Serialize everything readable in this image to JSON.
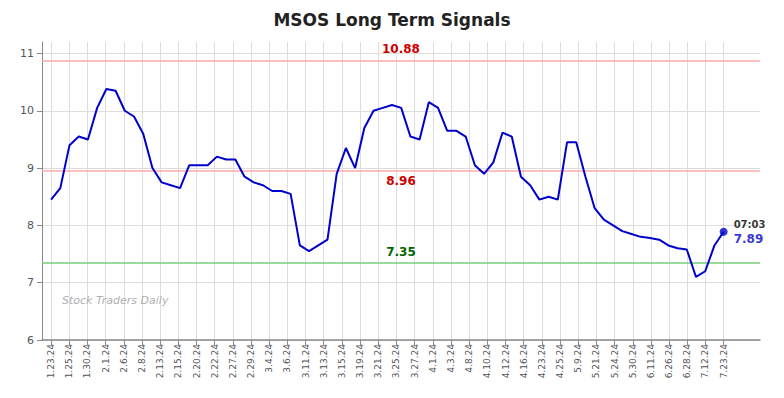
{
  "chart_data": {
    "type": "line",
    "title": "MSOS Long Term Signals",
    "x": [
      0,
      0.5068,
      1.0137,
      1.5205,
      2.0274,
      2.5342,
      3.0411,
      3.5479,
      4.0548,
      4.5616,
      5.0685,
      5.5753,
      6.0822,
      6.589,
      7.0959,
      7.6027,
      8.1096,
      8.6164,
      9.1233,
      9.6301,
      10.137,
      10.6438,
      11.1507,
      11.6575,
      12.1644,
      12.6712,
      13.1781,
      13.6849,
      14.1918,
      14.6986,
      15.2055,
      15.7123,
      16.2192,
      16.726,
      17.2329,
      17.7397,
      18.2466,
      18.7534,
      19.2603,
      19.7671,
      20.274,
      20.7808,
      21.2877,
      21.7945,
      22.3014,
      22.8082,
      23.3151,
      23.8219,
      24.3288,
      24.8356,
      25.3425,
      25.8493,
      26.3562,
      26.863,
      27.3699,
      27.8767,
      28.3836,
      28.8904,
      29.3973,
      29.9041,
      30.411,
      30.9178,
      31.4247,
      31.9315,
      32.4384,
      32.9452,
      33.4521,
      33.9589,
      34.4658,
      34.9726,
      35.4795,
      35.9863,
      36.4932,
      37
    ],
    "values": [
      8.45,
      8.65,
      9.4,
      9.55,
      9.5,
      10.05,
      10.38,
      10.35,
      10.0,
      9.9,
      9.6,
      9.0,
      8.75,
      8.7,
      8.65,
      9.05,
      9.05,
      9.05,
      9.2,
      9.15,
      9.15,
      8.85,
      8.75,
      8.7,
      8.6,
      8.6,
      8.55,
      7.65,
      7.55,
      7.65,
      7.75,
      8.9,
      9.35,
      9.0,
      9.7,
      10.0,
      10.05,
      10.1,
      10.05,
      9.55,
      9.5,
      10.15,
      10.05,
      9.65,
      9.65,
      9.55,
      9.05,
      8.9,
      9.1,
      9.62,
      9.55,
      8.85,
      8.7,
      8.45,
      8.5,
      8.45,
      9.45,
      9.45,
      8.85,
      8.3,
      8.1,
      8.0,
      7.9,
      7.85,
      7.8,
      7.78,
      7.75,
      7.65,
      7.6,
      7.58,
      7.1,
      7.2,
      7.65,
      7.89
    ],
    "color": "#0000cc",
    "xlim": [
      -0.5,
      39
    ],
    "xticks": [
      {
        "value": 0,
        "label": "1.23.24"
      },
      {
        "value": 1,
        "label": "1.25.24"
      },
      {
        "value": 2,
        "label": "1.30.24"
      },
      {
        "value": 3,
        "label": "2.1.24"
      },
      {
        "value": 4,
        "label": "2.6.24"
      },
      {
        "value": 5,
        "label": "2.8.24"
      },
      {
        "value": 6,
        "label": "2.13.24"
      },
      {
        "value": 7,
        "label": "2.15.24"
      },
      {
        "value": 8,
        "label": "2.20.24"
      },
      {
        "value": 9,
        "label": "2.22.24"
      },
      {
        "value": 10,
        "label": "2.27.24"
      },
      {
        "value": 11,
        "label": "2.29.24"
      },
      {
        "value": 12,
        "label": "3.4.24"
      },
      {
        "value": 13,
        "label": "3.6.24"
      },
      {
        "value": 14,
        "label": "3.11.24"
      },
      {
        "value": 15,
        "label": "3.13.24"
      },
      {
        "value": 16,
        "label": "3.15.24"
      },
      {
        "value": 17,
        "label": "3.19.24"
      },
      {
        "value": 18,
        "label": "3.21.24"
      },
      {
        "value": 19,
        "label": "3.25.24"
      },
      {
        "value": 20,
        "label": "3.27.24"
      },
      {
        "value": 21,
        "label": "4.1.24"
      },
      {
        "value": 22,
        "label": "4.3.24"
      },
      {
        "value": 23,
        "label": "4.8.24"
      },
      {
        "value": 24,
        "label": "4.10.24"
      },
      {
        "value": 25,
        "label": "4.12.24"
      },
      {
        "value": 26,
        "label": "4.16.24"
      },
      {
        "value": 27,
        "label": "4.23.24"
      },
      {
        "value": 28,
        "label": "4.25.24"
      },
      {
        "value": 29,
        "label": "5.9.24"
      },
      {
        "value": 30,
        "label": "5.21.24"
      },
      {
        "value": 31,
        "label": "5.24.24"
      },
      {
        "value": 32,
        "label": "5.30.24"
      },
      {
        "value": 33,
        "label": "6.11.24"
      },
      {
        "value": 34,
        "label": "6.26.24"
      },
      {
        "value": 35,
        "label": "6.28.24"
      },
      {
        "value": 36,
        "label": "7.12.24"
      },
      {
        "value": 37,
        "label": "7.23.24"
      }
    ],
    "ylim": [
      6.0,
      11.2
    ],
    "yticks": [
      6,
      7,
      8,
      9,
      10,
      11
    ],
    "grid": true,
    "hlines": [
      {
        "value": 10.88,
        "color": "#ffaaaa",
        "label_color": "#cc0000"
      },
      {
        "value": 8.96,
        "color": "#ffaaaa",
        "label_color": "#cc0000"
      },
      {
        "value": 7.35,
        "color": "#77cc77",
        "label_color": "#006600"
      }
    ],
    "end_point": {
      "time": "07:03",
      "color": "#0000cc"
    },
    "watermark": "Stock Traders Daily"
  }
}
